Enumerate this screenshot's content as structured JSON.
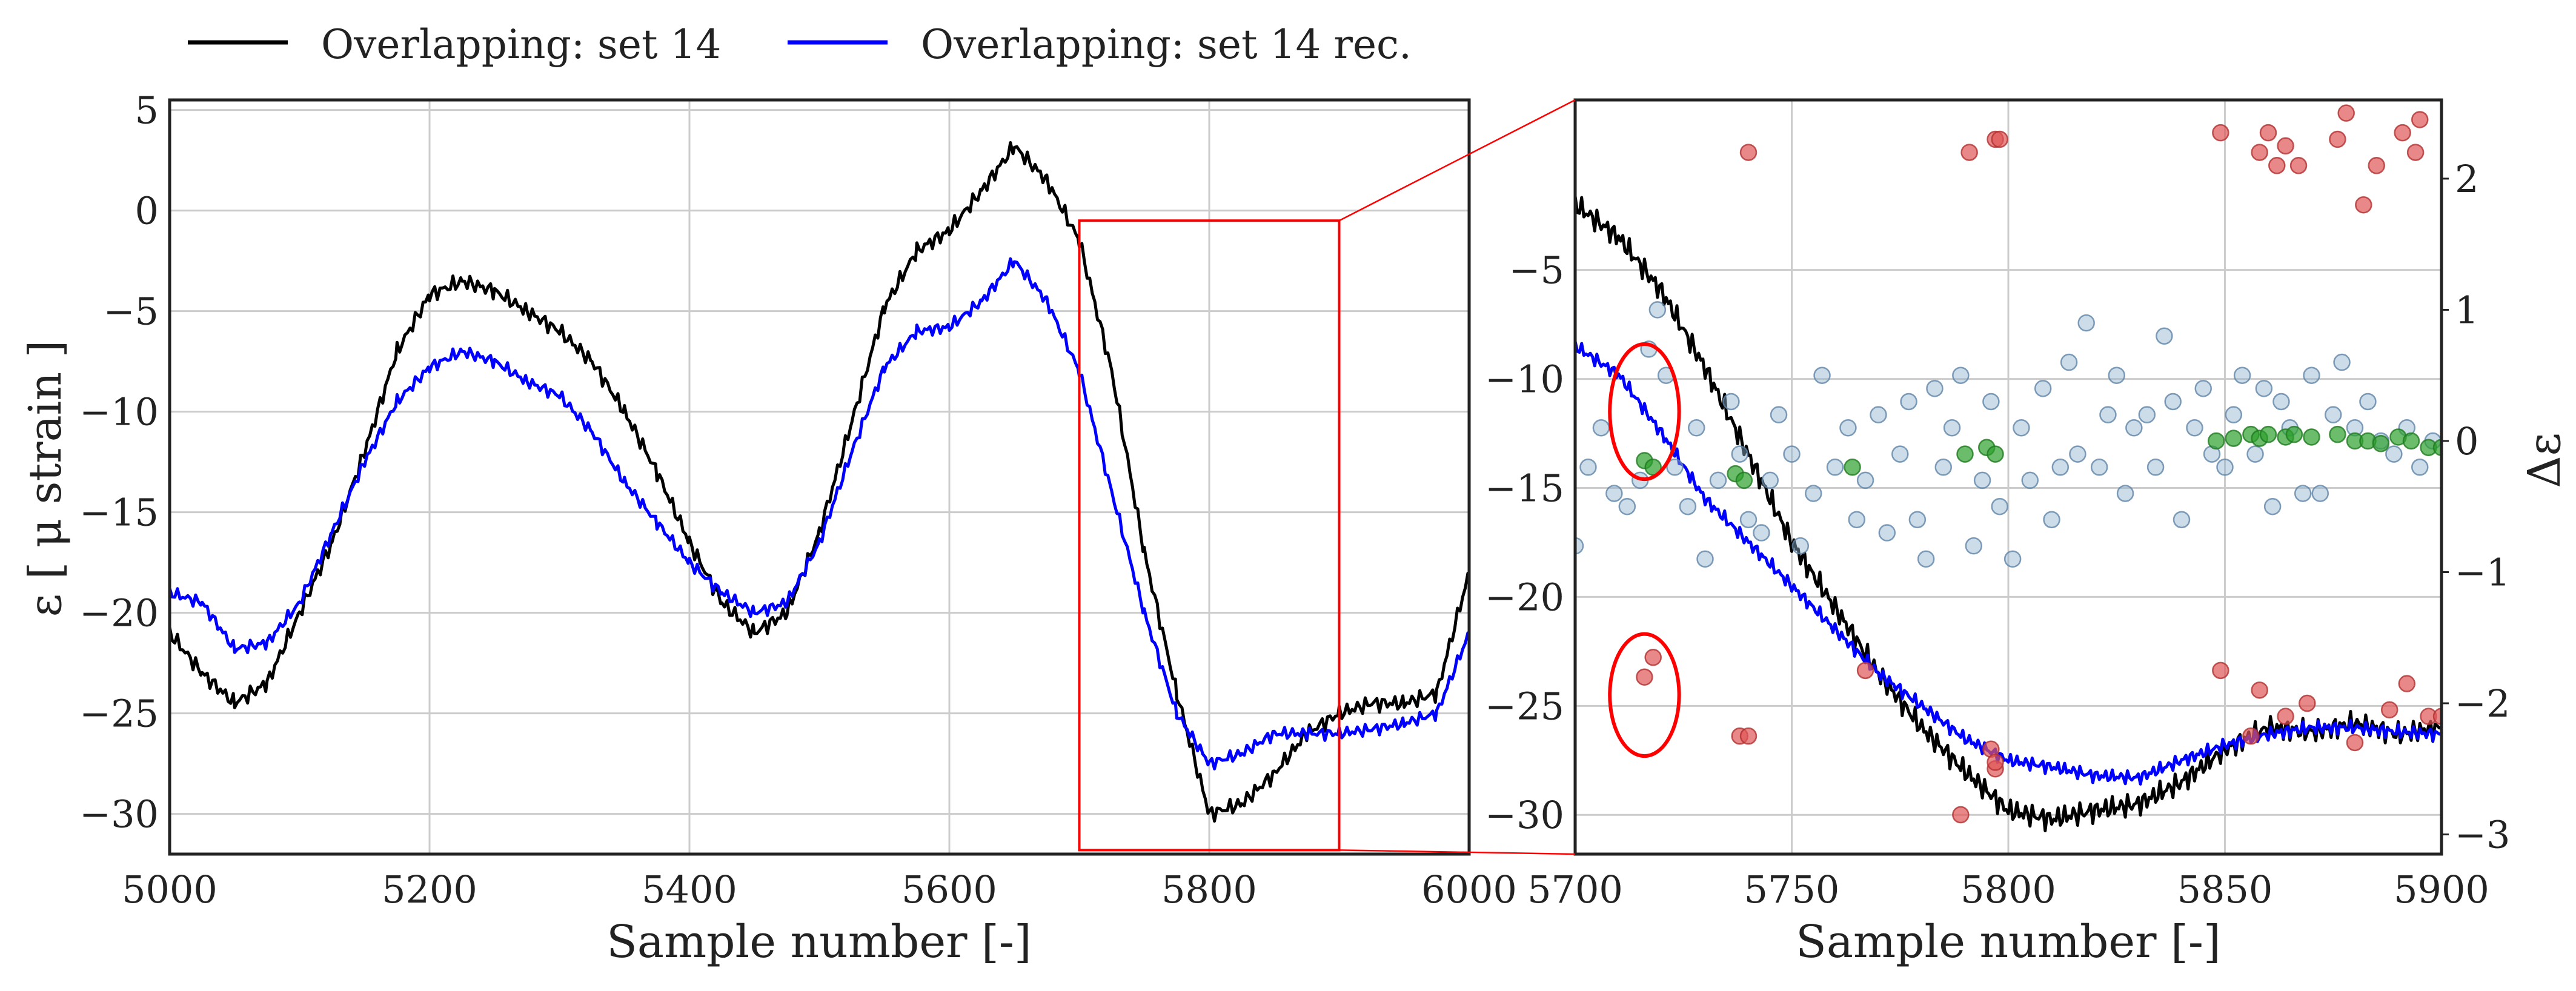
{
  "legend": {
    "entries": [
      {
        "label": "Overlapping: set 14",
        "color": "#000000"
      },
      {
        "label": "Overlapping: set 14 rec.",
        "color": "#0000ff"
      }
    ],
    "placement": "top-left, above plots"
  },
  "chart_data": [
    {
      "type": "line",
      "panel": "left",
      "xlabel": "Sample number [-]",
      "ylabel": "ε [ μ strain ]",
      "xlim": [
        5000,
        6000
      ],
      "ylim": [
        -32,
        5.5
      ],
      "xticks": [
        "5000",
        "5200",
        "5400",
        "5600",
        "5800",
        "6000"
      ],
      "yticks": [
        "5",
        "0",
        "−5",
        "−10",
        "−15",
        "−20",
        "−25",
        "−30"
      ],
      "ytick_values": [
        5,
        0,
        -5,
        -10,
        -15,
        -20,
        -25,
        -30
      ],
      "xtick_values": [
        5000,
        5200,
        5400,
        5600,
        5800,
        6000
      ],
      "grid": true,
      "x": [
        5000,
        5025,
        5050,
        5075,
        5100,
        5125,
        5150,
        5175,
        5200,
        5225,
        5250,
        5275,
        5300,
        5325,
        5350,
        5375,
        5400,
        5425,
        5450,
        5475,
        5500,
        5525,
        5550,
        5575,
        5600,
        5625,
        5650,
        5675,
        5700,
        5725,
        5750,
        5775,
        5800,
        5825,
        5850,
        5875,
        5900,
        5925,
        5950,
        5975,
        6000
      ],
      "series": [
        {
          "name": "Overlapping: set 14",
          "color": "#000000",
          "values": [
            -21,
            -23,
            -24.5,
            -23.5,
            -20,
            -16.5,
            -12,
            -7,
            -4.2,
            -3.5,
            -4,
            -5,
            -6,
            -7.5,
            -10,
            -13,
            -16.5,
            -19.5,
            -21,
            -20,
            -16,
            -10.5,
            -4.8,
            -2,
            -1,
            1,
            3.2,
            1.5,
            -1.5,
            -8,
            -17,
            -24,
            -30,
            -29.5,
            -28,
            -26,
            -25,
            -24.5,
            -24.5,
            -24,
            -18
          ]
        },
        {
          "name": "Overlapping: set 14 rec.",
          "color": "#0000ff",
          "values": [
            -19,
            -19.5,
            -21.8,
            -21.5,
            -19.5,
            -16,
            -12.5,
            -9.5,
            -7.8,
            -7,
            -7.5,
            -8.5,
            -9.2,
            -11,
            -13.5,
            -15.5,
            -17.5,
            -19,
            -20,
            -19.5,
            -16.5,
            -12,
            -7.8,
            -6,
            -5.8,
            -4.5,
            -2.5,
            -4.5,
            -8,
            -14,
            -20,
            -25,
            -27.5,
            -27,
            -26,
            -26,
            -26,
            -25.8,
            -25.5,
            -25,
            -21
          ]
        }
      ],
      "annotation": {
        "type": "zoom-box",
        "x_range": [
          5700,
          5900
        ],
        "y_range": [
          -31.8,
          -0.5
        ],
        "color": "#ff0000"
      }
    },
    {
      "type": "line+scatter",
      "panel": "right",
      "xlabel": "Sample number [-]",
      "ylabel_right": "Δε",
      "xlim": [
        5700,
        5900
      ],
      "ylim": [
        -31.8,
        2.8
      ],
      "y2lim": [
        -3.15,
        2.6
      ],
      "xticks": [
        "5700",
        "5750",
        "5800",
        "5850",
        "5900"
      ],
      "xtick_values": [
        5700,
        5750,
        5800,
        5850,
        5900
      ],
      "yticks": [
        "−5",
        "−10",
        "−15",
        "−20",
        "−25",
        "−30"
      ],
      "ytick_values": [
        -5,
        -10,
        -15,
        -20,
        -25,
        -30
      ],
      "y2ticks": [
        "2",
        "1",
        "0",
        "−1",
        "−2",
        "−3"
      ],
      "y2tick_values": [
        2,
        1,
        0,
        -1,
        -2,
        -3
      ],
      "grid": true,
      "x": [
        5700,
        5710,
        5720,
        5730,
        5740,
        5750,
        5760,
        5770,
        5780,
        5790,
        5800,
        5810,
        5820,
        5830,
        5840,
        5850,
        5860,
        5870,
        5880,
        5890,
        5900
      ],
      "series": [
        {
          "name": "Overlapping: set 14",
          "color": "#000000",
          "values": [
            -2,
            -3.5,
            -6,
            -9.5,
            -13.5,
            -17.5,
            -20.5,
            -23.5,
            -26,
            -28,
            -29.8,
            -30.2,
            -29.8,
            -29.5,
            -28.5,
            -27,
            -26,
            -26.2,
            -25.8,
            -26.3,
            -26
          ]
        },
        {
          "name": "Overlapping: set 14 rec.",
          "color": "#0000ff",
          "values": [
            -8.5,
            -9.8,
            -12.5,
            -15.5,
            -17.5,
            -19.5,
            -21.5,
            -23.5,
            -25,
            -26.5,
            -27.5,
            -27.8,
            -28.2,
            -28.3,
            -27.5,
            -26.8,
            -26.3,
            -26,
            -26,
            -26.2,
            -26.3
          ]
        }
      ],
      "scatter_series": [
        {
          "name": "Δε (gray-blue)",
          "axis": "right",
          "color": "#8fb1cc",
          "points": [
            [
              5700,
              -0.8
            ],
            [
              5703,
              -0.2
            ],
            [
              5706,
              0.1
            ],
            [
              5709,
              -0.4
            ],
            [
              5712,
              -0.5
            ],
            [
              5715,
              -0.3
            ],
            [
              5717,
              0.7
            ],
            [
              5719,
              1.0
            ],
            [
              5721,
              0.5
            ],
            [
              5723,
              -0.2
            ],
            [
              5726,
              -0.5
            ],
            [
              5728,
              0.1
            ],
            [
              5730,
              -0.9
            ],
            [
              5733,
              -0.3
            ],
            [
              5736,
              0.3
            ],
            [
              5738,
              -0.1
            ],
            [
              5740,
              -0.6
            ],
            [
              5743,
              -0.7
            ],
            [
              5745,
              -0.3
            ],
            [
              5747,
              0.2
            ],
            [
              5750,
              -0.1
            ],
            [
              5752,
              -0.8
            ],
            [
              5755,
              -0.4
            ],
            [
              5757,
              0.5
            ],
            [
              5760,
              -0.2
            ],
            [
              5763,
              0.1
            ],
            [
              5765,
              -0.6
            ],
            [
              5767,
              -0.3
            ],
            [
              5770,
              0.2
            ],
            [
              5772,
              -0.7
            ],
            [
              5775,
              -0.1
            ],
            [
              5777,
              0.3
            ],
            [
              5779,
              -0.6
            ],
            [
              5781,
              -0.9
            ],
            [
              5783,
              0.4
            ],
            [
              5785,
              -0.2
            ],
            [
              5787,
              0.1
            ],
            [
              5789,
              0.5
            ],
            [
              5792,
              -0.8
            ],
            [
              5794,
              -0.3
            ],
            [
              5796,
              0.3
            ],
            [
              5798,
              -0.5
            ],
            [
              5801,
              -0.9
            ],
            [
              5803,
              0.1
            ],
            [
              5805,
              -0.3
            ],
            [
              5808,
              0.4
            ],
            [
              5810,
              -0.6
            ],
            [
              5812,
              -0.2
            ],
            [
              5814,
              0.6
            ],
            [
              5816,
              -0.1
            ],
            [
              5818,
              0.9
            ],
            [
              5821,
              -0.2
            ],
            [
              5823,
              0.2
            ],
            [
              5825,
              0.5
            ],
            [
              5827,
              -0.4
            ],
            [
              5829,
              0.1
            ],
            [
              5832,
              0.2
            ],
            [
              5834,
              -0.2
            ],
            [
              5836,
              0.8
            ],
            [
              5838,
              0.3
            ],
            [
              5840,
              -0.6
            ],
            [
              5843,
              0.1
            ],
            [
              5845,
              0.4
            ],
            [
              5847,
              -0.1
            ],
            [
              5850,
              -0.2
            ],
            [
              5852,
              0.2
            ],
            [
              5854,
              0.5
            ],
            [
              5857,
              -0.1
            ],
            [
              5859,
              0.4
            ],
            [
              5861,
              -0.5
            ],
            [
              5863,
              0.3
            ],
            [
              5865,
              0.1
            ],
            [
              5868,
              -0.4
            ],
            [
              5870,
              0.5
            ],
            [
              5872,
              -0.4
            ],
            [
              5875,
              0.2
            ],
            [
              5877,
              0.6
            ],
            [
              5880,
              0.1
            ],
            [
              5883,
              0.3
            ],
            [
              5886,
              0.0
            ],
            [
              5889,
              -0.1
            ],
            [
              5892,
              0.1
            ],
            [
              5895,
              -0.2
            ],
            [
              5898,
              0.0
            ]
          ]
        },
        {
          "name": "Δε (green)",
          "axis": "right",
          "color": "#2ca02c",
          "points": [
            [
              5716,
              -0.15
            ],
            [
              5718,
              -0.2
            ],
            [
              5737,
              -0.25
            ],
            [
              5739,
              -0.3
            ],
            [
              5764,
              -0.2
            ],
            [
              5790,
              -0.1
            ],
            [
              5795,
              -0.05
            ],
            [
              5797,
              -0.1
            ],
            [
              5848,
              0.0
            ],
            [
              5852,
              0.02
            ],
            [
              5856,
              0.05
            ],
            [
              5858,
              0.02
            ],
            [
              5860,
              0.05
            ],
            [
              5864,
              0.03
            ],
            [
              5866,
              0.05
            ],
            [
              5870,
              0.03
            ],
            [
              5876,
              0.05
            ],
            [
              5880,
              0.0
            ],
            [
              5883,
              0.0
            ],
            [
              5886,
              -0.02
            ],
            [
              5890,
              0.03
            ],
            [
              5893,
              0.0
            ],
            [
              5897,
              -0.05
            ],
            [
              5900,
              -0.05
            ]
          ]
        },
        {
          "name": "Δε (red)",
          "axis": "right",
          "color": "#e05555",
          "points": [
            [
              5716,
              -1.8
            ],
            [
              5718,
              -1.65
            ],
            [
              5738,
              -2.25
            ],
            [
              5740,
              -2.25
            ],
            [
              5740,
              2.2
            ],
            [
              5767,
              -1.75
            ],
            [
              5789,
              -2.85
            ],
            [
              5791,
              2.2
            ],
            [
              5796,
              -2.35
            ],
            [
              5797,
              2.3
            ],
            [
              5797,
              -2.5
            ],
            [
              5798,
              2.3
            ],
            [
              5797,
              -2.45
            ],
            [
              5849,
              -1.75
            ],
            [
              5849,
              2.35
            ],
            [
              5856,
              -2.25
            ],
            [
              5858,
              -1.9
            ],
            [
              5858,
              2.2
            ],
            [
              5860,
              2.35
            ],
            [
              5862,
              2.1
            ],
            [
              5864,
              2.25
            ],
            [
              5864,
              -2.1
            ],
            [
              5867,
              2.1
            ],
            [
              5869,
              -2.0
            ],
            [
              5876,
              2.3
            ],
            [
              5878,
              2.5
            ],
            [
              5880,
              -2.3
            ],
            [
              5882,
              1.8
            ],
            [
              5885,
              2.1
            ],
            [
              5888,
              -2.05
            ],
            [
              5891,
              2.35
            ],
            [
              5892,
              -1.85
            ],
            [
              5894,
              2.2
            ],
            [
              5895,
              2.45
            ],
            [
              5897,
              -2.1
            ],
            [
              5900,
              -2.1
            ]
          ]
        }
      ],
      "annotations": [
        {
          "type": "ellipse",
          "color": "#ff0000",
          "center_x": 5716,
          "center_y": -11.5,
          "rx_data": 8,
          "ry_data": 3.1
        },
        {
          "type": "ellipse",
          "color": "#ff0000",
          "center_x": 5716,
          "center_y": -24.5,
          "rx_data": 8,
          "ry_data": 2.8
        }
      ]
    }
  ]
}
